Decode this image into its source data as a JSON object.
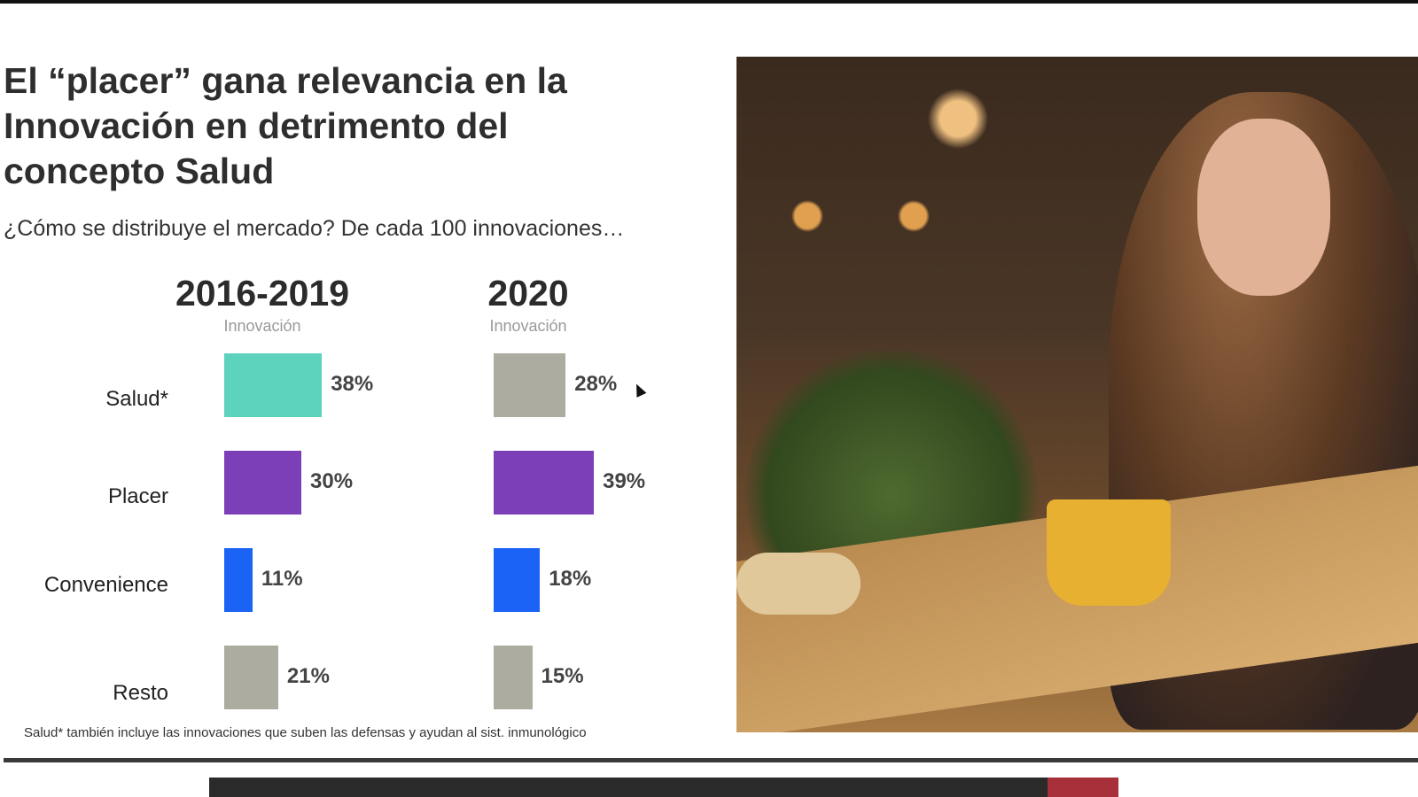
{
  "slide": {
    "title": "El “placer” gana relevancia en la Innovación en detrimento del concepto Salud",
    "subtitle": "¿Cómo se distribuye el mercado? De cada 100 innovaciones…",
    "footnote": "Salud* también incluye las innovaciones que suben las defensas y ayudan al sist. inmunológico"
  },
  "chart_data": {
    "type": "bar",
    "orientation": "horizontal",
    "title": "¿Cómo se distribuye el mercado? De cada 100 innovaciones…",
    "categories": [
      "Salud*",
      "Placer",
      "Convenience",
      "Resto"
    ],
    "series": [
      {
        "name": "2016-2019",
        "sublabel": "Innovación",
        "values": [
          38,
          30,
          11,
          21
        ],
        "labels": [
          "38%",
          "30%",
          "11%",
          "21%"
        ],
        "colors": [
          "#5dd3be",
          "#7c3fb8",
          "#1a63f5",
          "#adaca0"
        ]
      },
      {
        "name": "2020",
        "sublabel": "Innovación",
        "values": [
          28,
          39,
          18,
          15
        ],
        "labels": [
          "28%",
          "39%",
          "18%",
          "15%"
        ],
        "colors": [
          "#adaca0",
          "#7c3fb8",
          "#1a63f5",
          "#adaca0"
        ]
      }
    ],
    "unit": "%",
    "grid": false
  }
}
